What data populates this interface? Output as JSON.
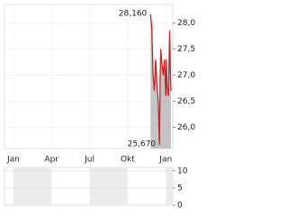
{
  "chart_data": [
    {
      "type": "line",
      "x": [
        10.8,
        10.9,
        11.0,
        11.1,
        11.2,
        11.3,
        11.4,
        11.5,
        11.55,
        11.6,
        11.7,
        11.8,
        11.9,
        12.0,
        12.05,
        12.1,
        12.2,
        12.3,
        12.35,
        12.4
      ],
      "series": [
        {
          "name": null,
          "color": "#cc2222",
          "values": [
            28.16,
            27.9,
            27.0,
            26.7,
            27.3,
            26.8,
            26.5,
            25.67,
            26.9,
            27.5,
            27.2,
            27.0,
            27.3,
            26.6,
            27.3,
            26.8,
            26.6,
            27.85,
            27.2,
            26.7
          ]
        }
      ],
      "annotations": [
        {
          "label": "28,160",
          "value": 28.16
        },
        {
          "label": "25,670",
          "value": 25.67
        }
      ],
      "xlim": [
        -0.7,
        12.55
      ],
      "xticks": [
        {
          "value": 0,
          "label": "Jan"
        },
        {
          "value": 3,
          "label": "Apr"
        },
        {
          "value": 6,
          "label": "Jul"
        },
        {
          "value": 9,
          "label": "Okt"
        },
        {
          "value": 12,
          "label": "Jan"
        }
      ],
      "ylim": [
        25.6,
        28.35
      ],
      "yticks": [
        {
          "value": 26,
          "label": "26,0"
        },
        {
          "value": 26.5,
          "label": "26,5"
        },
        {
          "value": 27,
          "label": "27,0"
        },
        {
          "value": 27.5,
          "label": "27,5"
        },
        {
          "value": 28,
          "label": "28,0"
        }
      ],
      "grid": true
    },
    {
      "type": "bar",
      "ylim": [
        0,
        11
      ],
      "yticks": [
        0,
        5,
        10
      ],
      "grid": true
    }
  ]
}
